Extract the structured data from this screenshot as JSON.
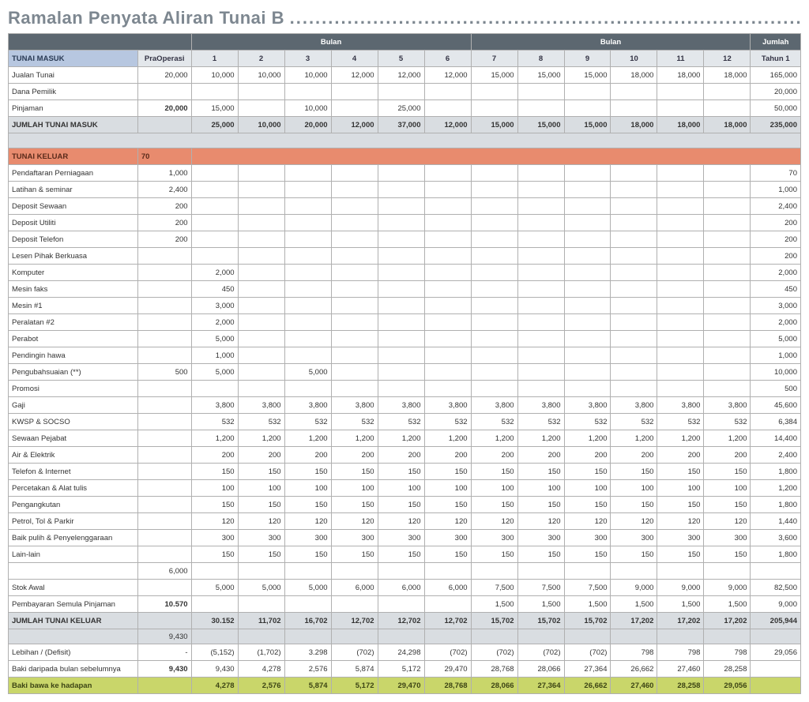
{
  "title": "Ramalan Penyata Aliran Tunai B",
  "dots": "..........................................................................................",
  "headers": {
    "bulan": "Bulan",
    "jumlah": "Jumlah",
    "praoperasi": "PraOperasi",
    "months": [
      "1",
      "2",
      "3",
      "4",
      "5",
      "6",
      "7",
      "8",
      "9",
      "10",
      "11",
      "12"
    ],
    "tahun": "Tahun 1"
  },
  "sections": {
    "masuk_label": "TUNAI MASUK",
    "keluar_label": "TUNAI KELUAR",
    "keluar_extra": "70",
    "jumlah_masuk": "JUMLAH TUNAI MASUK",
    "jumlah_keluar": "JUMLAH TUNAI KELUAR",
    "lebihan": "Lebihan / (Defisit)",
    "baki_prev": "Baki daripada bulan sebelumnya",
    "baki_fwd": "Baki bawa ke hadapan"
  },
  "rows_masuk": [
    {
      "label": "Jualan Tunai",
      "pre": "20,000",
      "m": [
        "10,000",
        "10,000",
        "10,000",
        "12,000",
        "12,000",
        "12,000",
        "15,000",
        "15,000",
        "15,000",
        "18,000",
        "18,000",
        "18,000"
      ],
      "tot": "165,000"
    },
    {
      "label": "Dana Pemilik",
      "pre": "",
      "m": [
        "",
        "",
        "",
        "",
        "",
        "",
        "",
        "",
        "",
        "",
        "",
        ""
      ],
      "tot": "20,000"
    },
    {
      "label": "Pinjaman",
      "pre": "20,000",
      "bold_pre": true,
      "m": [
        "15,000",
        "",
        "10,000",
        "",
        "25,000",
        "",
        "",
        "",
        "",
        "",
        "",
        ""
      ],
      "tot": "50,000"
    }
  ],
  "total_masuk": {
    "pre": "",
    "m": [
      "25,000",
      "10,000",
      "20,000",
      "12,000",
      "37,000",
      "12,000",
      "15,000",
      "15,000",
      "15,000",
      "18,000",
      "18,000",
      "18,000"
    ],
    "tot": "235,000"
  },
  "rows_keluar": [
    {
      "label": "Pendaftaran Perniagaan",
      "pre": "1,000",
      "m": [
        "",
        "",
        "",
        "",
        "",
        "",
        "",
        "",
        "",
        "",
        "",
        ""
      ],
      "tot": "70"
    },
    {
      "label": "Latihan & seminar",
      "pre": "2,400",
      "m": [
        "",
        "",
        "",
        "",
        "",
        "",
        "",
        "",
        "",
        "",
        "",
        ""
      ],
      "tot": "1,000"
    },
    {
      "label": "Deposit Sewaan",
      "pre": "200",
      "m": [
        "",
        "",
        "",
        "",
        "",
        "",
        "",
        "",
        "",
        "",
        "",
        ""
      ],
      "tot": "2,400"
    },
    {
      "label": "Deposit Utiliti",
      "pre": "200",
      "m": [
        "",
        "",
        "",
        "",
        "",
        "",
        "",
        "",
        "",
        "",
        "",
        ""
      ],
      "tot": "200"
    },
    {
      "label": "Deposit Telefon",
      "pre": "200",
      "m": [
        "",
        "",
        "",
        "",
        "",
        "",
        "",
        "",
        "",
        "",
        "",
        ""
      ],
      "tot": "200"
    },
    {
      "label": "Lesen Pihak Berkuasa",
      "pre": "",
      "m": [
        "",
        "",
        "",
        "",
        "",
        "",
        "",
        "",
        "",
        "",
        "",
        ""
      ],
      "tot": "200"
    },
    {
      "label": "Komputer",
      "pre": "",
      "m": [
        "2,000",
        "",
        "",
        "",
        "",
        "",
        "",
        "",
        "",
        "",
        "",
        ""
      ],
      "tot": "2,000"
    },
    {
      "label": "Mesin faks",
      "pre": "",
      "m": [
        "450",
        "",
        "",
        "",
        "",
        "",
        "",
        "",
        "",
        "",
        "",
        ""
      ],
      "tot": "450"
    },
    {
      "label": "Mesin #1",
      "pre": "",
      "m": [
        "3,000",
        "",
        "",
        "",
        "",
        "",
        "",
        "",
        "",
        "",
        "",
        ""
      ],
      "tot": "3,000"
    },
    {
      "label": "Peralatan #2",
      "pre": "",
      "m": [
        "2,000",
        "",
        "",
        "",
        "",
        "",
        "",
        "",
        "",
        "",
        "",
        ""
      ],
      "tot": "2,000"
    },
    {
      "label": "Perabot",
      "pre": "",
      "m": [
        "5,000",
        "",
        "",
        "",
        "",
        "",
        "",
        "",
        "",
        "",
        "",
        ""
      ],
      "tot": "5,000"
    },
    {
      "label": "Pendingin hawa",
      "pre": "",
      "m": [
        "1,000",
        "",
        "",
        "",
        "",
        "",
        "",
        "",
        "",
        "",
        "",
        ""
      ],
      "tot": "1,000"
    },
    {
      "label": "Pengubahsuaian (**)",
      "pre": "500",
      "m": [
        "5,000",
        "",
        "5,000",
        "",
        "",
        "",
        "",
        "",
        "",
        "",
        "",
        ""
      ],
      "tot": "10,000"
    },
    {
      "label": "Promosi",
      "pre": "",
      "m": [
        "",
        "",
        "",
        "",
        "",
        "",
        "",
        "",
        "",
        "",
        "",
        ""
      ],
      "tot": "500"
    },
    {
      "label": "Gaji",
      "pre": "",
      "m": [
        "3,800",
        "3,800",
        "3,800",
        "3,800",
        "3,800",
        "3,800",
        "3,800",
        "3,800",
        "3,800",
        "3,800",
        "3,800",
        "3,800"
      ],
      "tot": "45,600"
    },
    {
      "label": "KWSP & SOCSO",
      "pre": "",
      "m": [
        "532",
        "532",
        "532",
        "532",
        "532",
        "532",
        "532",
        "532",
        "532",
        "532",
        "532",
        "532"
      ],
      "tot": "6,384"
    },
    {
      "label": "Sewaan Pejabat",
      "pre": "",
      "m": [
        "1,200",
        "1,200",
        "1,200",
        "1,200",
        "1,200",
        "1,200",
        "1,200",
        "1,200",
        "1,200",
        "1,200",
        "1,200",
        "1,200"
      ],
      "tot": "14,400"
    },
    {
      "label": "Air & Elektrik",
      "pre": "",
      "m": [
        "200",
        "200",
        "200",
        "200",
        "200",
        "200",
        "200",
        "200",
        "200",
        "200",
        "200",
        "200"
      ],
      "tot": "2,400"
    },
    {
      "label": "Telefon & Internet",
      "pre": "",
      "m": [
        "150",
        "150",
        "150",
        "150",
        "150",
        "150",
        "150",
        "150",
        "150",
        "150",
        "150",
        "150"
      ],
      "tot": "1,800"
    },
    {
      "label": "Percetakan & Alat tulis",
      "pre": "",
      "m": [
        "100",
        "100",
        "100",
        "100",
        "100",
        "100",
        "100",
        "100",
        "100",
        "100",
        "100",
        "100"
      ],
      "tot": "1,200"
    },
    {
      "label": "Pengangkutan",
      "pre": "",
      "m": [
        "150",
        "150",
        "150",
        "150",
        "150",
        "150",
        "150",
        "150",
        "150",
        "150",
        "150",
        "150"
      ],
      "tot": "1,800"
    },
    {
      "label": "Petrol, Tol & Parkir",
      "pre": "",
      "m": [
        "120",
        "120",
        "120",
        "120",
        "120",
        "120",
        "120",
        "120",
        "120",
        "120",
        "120",
        "120"
      ],
      "tot": "1,440"
    },
    {
      "label": "Baik pulih & Penyelenggaraan",
      "pre": "",
      "m": [
        "300",
        "300",
        "300",
        "300",
        "300",
        "300",
        "300",
        "300",
        "300",
        "300",
        "300",
        "300"
      ],
      "tot": "3,600"
    },
    {
      "label": "Lain-lain",
      "pre": "",
      "m": [
        "150",
        "150",
        "150",
        "150",
        "150",
        "150",
        "150",
        "150",
        "150",
        "150",
        "150",
        "150"
      ],
      "tot": "1,800"
    },
    {
      "label": "",
      "pre": "6,000",
      "m": [
        "",
        "",
        "",
        "",
        "",
        "",
        "",
        "",
        "",
        "",
        "",
        ""
      ],
      "tot": ""
    },
    {
      "label": "Stok Awal",
      "pre": "",
      "m": [
        "5,000",
        "5,000",
        "5,000",
        "6,000",
        "6,000",
        "6,000",
        "7,500",
        "7,500",
        "7,500",
        "9,000",
        "9,000",
        "9,000"
      ],
      "tot": "82,500"
    },
    {
      "label": "Pembayaran Semula Pinjaman",
      "pre": "10.570",
      "bold_pre": true,
      "m": [
        "",
        "",
        "",
        "",
        "",
        "",
        "1,500",
        "1,500",
        "1,500",
        "1,500",
        "1,500",
        "1,500"
      ],
      "tot": "9,000"
    }
  ],
  "total_keluar": {
    "pre": "",
    "m": [
      "30.152",
      "11,702",
      "16,702",
      "12,702",
      "12,702",
      "12,702",
      "15,702",
      "15,702",
      "15,702",
      "17,202",
      "17,202",
      "17,202"
    ],
    "tot": "205,944"
  },
  "gap_after_keluar": {
    "pre": "9,430"
  },
  "lebihan": {
    "pre": "-",
    "m": [
      "(5,152)",
      "(1,702)",
      "3.298",
      "(702)",
      "24,298",
      "(702)",
      "(702)",
      "(702)",
      "(702)",
      "798",
      "798",
      "798"
    ],
    "tot": "29,056"
  },
  "baki_prev": {
    "pre": "9,430",
    "m": [
      "9,430",
      "4,278",
      "2,576",
      "5,874",
      "5,172",
      "29,470",
      "28,768",
      "28,066",
      "27,364",
      "26,662",
      "27,460",
      "28,258"
    ],
    "tot": ""
  },
  "baki_fwd": {
    "pre": "",
    "m": [
      "4,278",
      "2,576",
      "5,874",
      "5,172",
      "29,470",
      "28,768",
      "28,066",
      "27,364",
      "26,662",
      "27,460",
      "28,258",
      "29,056"
    ],
    "tot": ""
  },
  "colors": {
    "header_dark": "#5c6770",
    "header_light": "#e3e7eb",
    "header_blue": "#b7c7e0",
    "header_orange": "#e88b6e",
    "header_green": "#c9d66a",
    "row_total": "#d9dde1",
    "title": "#7d8790"
  }
}
